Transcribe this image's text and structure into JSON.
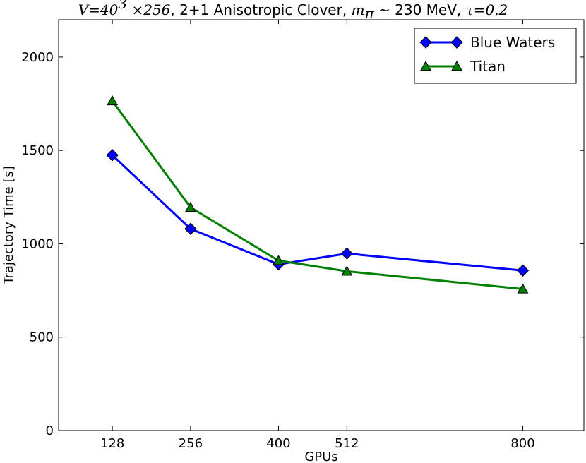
{
  "chart_data": {
    "type": "line",
    "title": {
      "segments": [
        {
          "text": "V=40",
          "style": "math"
        },
        {
          "text": "3",
          "style": "math-sup"
        },
        {
          "text": " ×256",
          "style": "math"
        },
        {
          "text": ", 2+1 Anisotropic Clover, ",
          "style": "text"
        },
        {
          "text": "m",
          "style": "math"
        },
        {
          "text": "π",
          "style": "math-sub"
        },
        {
          "text": " ~ 230 MeV, ",
          "style": "text"
        },
        {
          "text": "τ=0.2",
          "style": "math"
        }
      ]
    },
    "xlabel": "GPUs",
    "ylabel": "Trajectory Time [s]",
    "x_tick_labels": [
      "128",
      "256",
      "400",
      "512",
      "800"
    ],
    "x_categories": [
      128,
      256,
      400,
      512,
      800
    ],
    "xlim": [
      40,
      900
    ],
    "ylim": [
      0,
      2200
    ],
    "y_ticks": [
      0,
      500,
      1000,
      1500,
      2000
    ],
    "y_tick_labels": [
      "0",
      "500",
      "1000",
      "1500",
      "2000"
    ],
    "grid": false,
    "legend_position": "top-right",
    "series": [
      {
        "name": "Blue Waters",
        "color": "#0000ff",
        "marker": "diamond",
        "x": [
          128,
          256,
          400,
          512,
          800
        ],
        "values": [
          1475,
          1080,
          890,
          948,
          857
        ]
      },
      {
        "name": "Titan",
        "color": "#008000",
        "marker": "triangle",
        "x": [
          128,
          256,
          400,
          512,
          800
        ],
        "values": [
          1765,
          1195,
          910,
          853,
          758
        ]
      }
    ]
  }
}
